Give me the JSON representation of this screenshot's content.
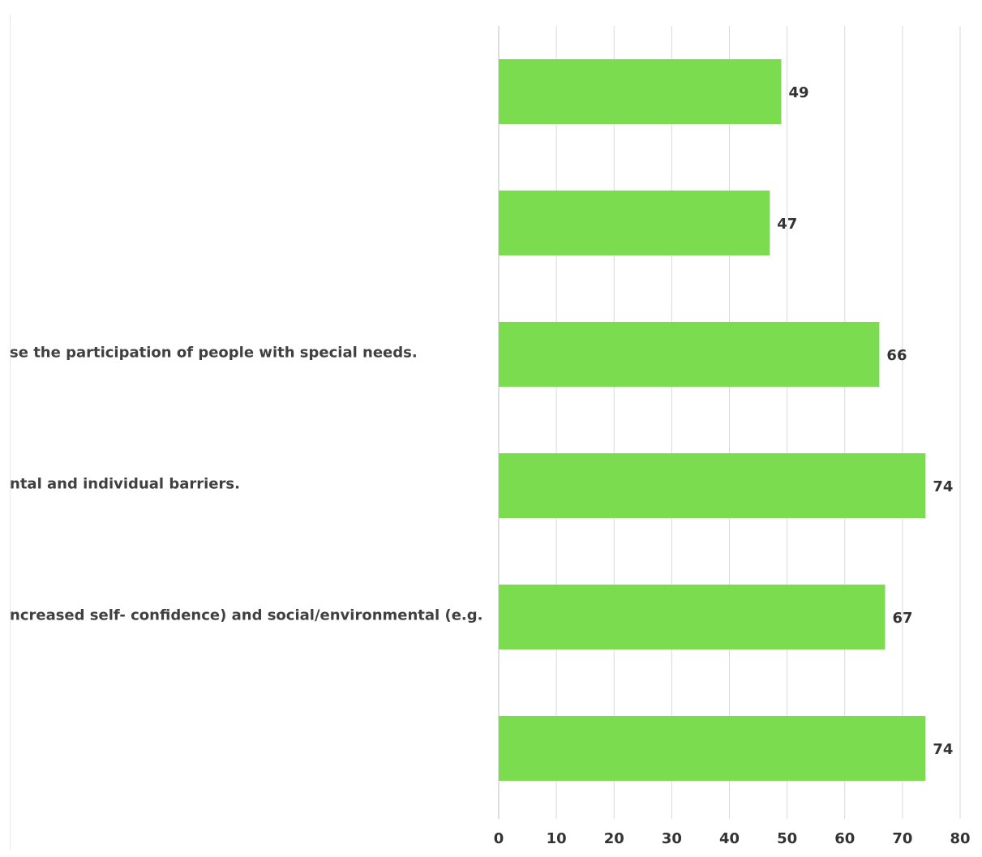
{
  "colors": {
    "bar": "#7BDC4F",
    "grid": "#d9d9d9",
    "text": "#333333"
  },
  "chart_data": {
    "type": "bar",
    "orientation": "horizontal",
    "categories": [
      "",
      "",
      "se the participation of people with special needs.",
      "ntal and individual barriers.",
      "ncreased self- confidence) and social/environmental (e.g.",
      ""
    ],
    "values": [
      49,
      47,
      66,
      74,
      67,
      74
    ],
    "data_labels": [
      "49",
      "47",
      "66",
      "74",
      "67",
      "74"
    ],
    "xlim": [
      0,
      80
    ],
    "xticks": [
      "0",
      "10",
      "20",
      "30",
      "40",
      "50",
      "60",
      "70",
      "80"
    ],
    "grid": true,
    "title": "",
    "xlabel": "",
    "ylabel": ""
  }
}
